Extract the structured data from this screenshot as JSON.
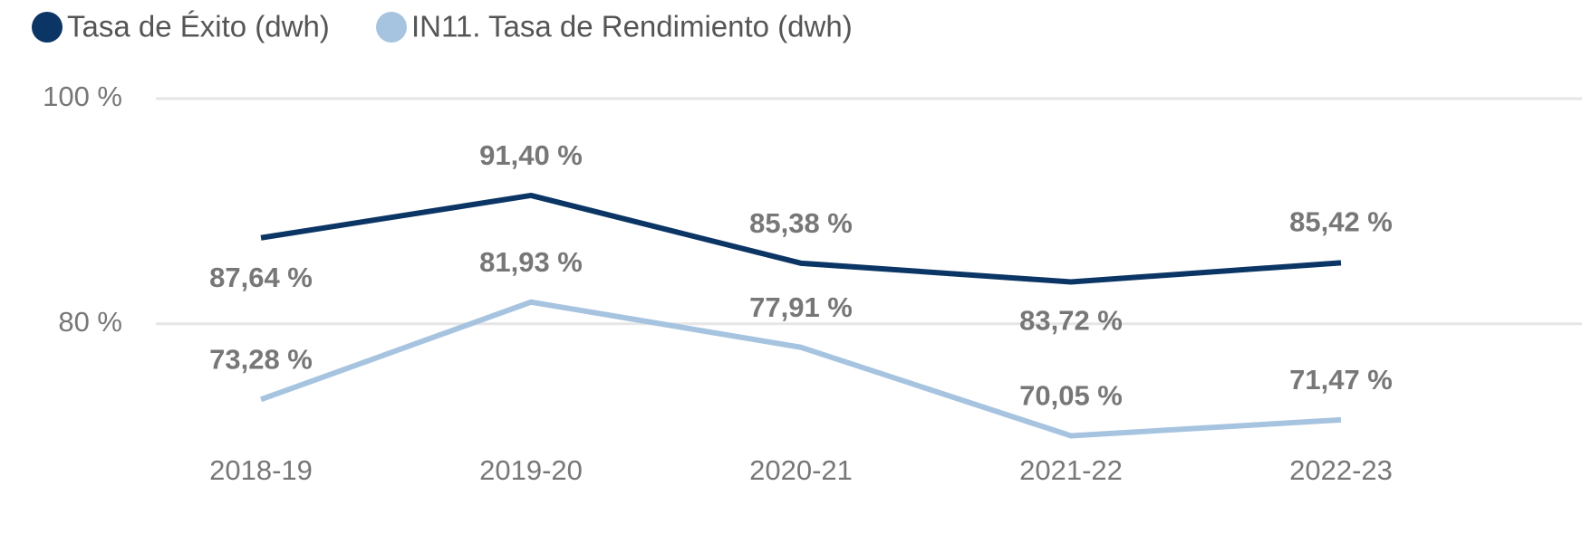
{
  "chart_data": {
    "type": "line",
    "categories": [
      "2018-19",
      "2019-20",
      "2020-21",
      "2021-22",
      "2022-23"
    ],
    "series": [
      {
        "name": "Tasa de Éxito (dwh)",
        "color": "#0b3565",
        "values": [
          87.64,
          91.4,
          85.38,
          83.72,
          85.42
        ],
        "value_labels": [
          "87,64 %",
          "91,40 %",
          "85,38 %",
          "83,72 %",
          "85,42 %"
        ]
      },
      {
        "name": "IN11. Tasa de Rendimiento (dwh)",
        "color": "#a6c4e0",
        "values": [
          73.28,
          81.93,
          77.91,
          70.05,
          71.47
        ],
        "value_labels": [
          "73,28 %",
          "81,93 %",
          "77,91 %",
          "70,05 %",
          "71,47 %"
        ]
      }
    ],
    "ylim": [
      68,
      100
    ],
    "yticks": [
      {
        "value": 80,
        "label": "80 %"
      },
      {
        "value": 100,
        "label": "100 %"
      }
    ],
    "grid": true
  }
}
